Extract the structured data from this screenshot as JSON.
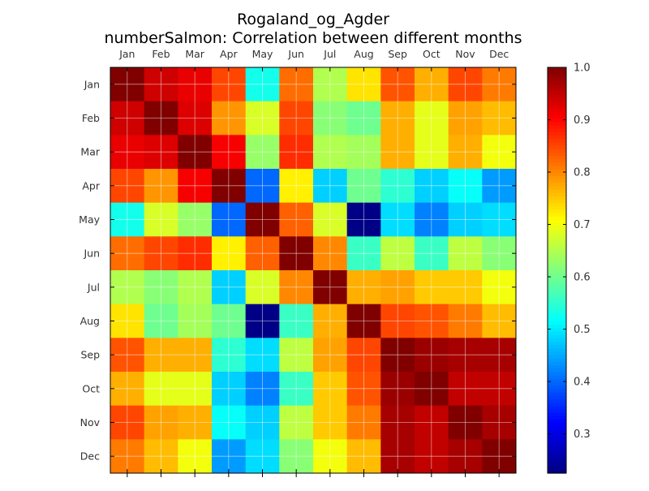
{
  "chart_data": {
    "type": "heatmap",
    "title": "Rogaland_og_Agder",
    "subtitle": "numberSalmon: Correlation between different months",
    "x_labels": [
      "Jan",
      "Feb",
      "Mar",
      "Apr",
      "May",
      "Jun",
      "Jul",
      "Aug",
      "Sep",
      "Oct",
      "Nov",
      "Dec"
    ],
    "y_labels": [
      "Jan",
      "Feb",
      "Mar",
      "Apr",
      "May",
      "Jun",
      "Jul",
      "Aug",
      "Sep",
      "Oct",
      "Nov",
      "Dec"
    ],
    "x_tick_position": "top",
    "grid": true,
    "colormap": "jet",
    "value_range": [
      0.225,
      1.0
    ],
    "colorbar_ticks": [
      "0.3",
      "0.4",
      "0.5",
      "0.6",
      "0.7",
      "0.8",
      "0.9",
      "1.0"
    ],
    "values": [
      [
        1.0,
        0.94,
        0.92,
        0.85,
        0.53,
        0.82,
        0.65,
        0.73,
        0.84,
        0.77,
        0.85,
        0.81
      ],
      [
        0.94,
        1.0,
        0.93,
        0.79,
        0.68,
        0.85,
        0.62,
        0.6,
        0.77,
        0.69,
        0.78,
        0.76
      ],
      [
        0.92,
        0.93,
        1.0,
        0.91,
        0.63,
        0.87,
        0.65,
        0.64,
        0.77,
        0.69,
        0.77,
        0.7
      ],
      [
        0.85,
        0.79,
        0.91,
        1.0,
        0.4,
        0.72,
        0.48,
        0.6,
        0.55,
        0.48,
        0.52,
        0.44
      ],
      [
        0.53,
        0.68,
        0.63,
        0.4,
        1.0,
        0.83,
        0.68,
        0.23,
        0.49,
        0.42,
        0.48,
        0.49
      ],
      [
        0.82,
        0.85,
        0.87,
        0.72,
        0.83,
        1.0,
        0.8,
        0.56,
        0.66,
        0.56,
        0.66,
        0.62
      ],
      [
        0.65,
        0.62,
        0.65,
        0.48,
        0.68,
        0.8,
        1.0,
        0.77,
        0.78,
        0.75,
        0.75,
        0.7
      ],
      [
        0.73,
        0.6,
        0.64,
        0.6,
        0.23,
        0.56,
        0.77,
        1.0,
        0.85,
        0.84,
        0.81,
        0.76
      ],
      [
        0.84,
        0.77,
        0.77,
        0.55,
        0.49,
        0.66,
        0.78,
        0.85,
        1.0,
        0.98,
        0.97,
        0.97
      ],
      [
        0.77,
        0.69,
        0.69,
        0.48,
        0.42,
        0.56,
        0.75,
        0.84,
        0.98,
        1.0,
        0.95,
        0.95
      ],
      [
        0.85,
        0.78,
        0.77,
        0.52,
        0.48,
        0.66,
        0.75,
        0.81,
        0.97,
        0.95,
        1.0,
        0.97
      ],
      [
        0.81,
        0.76,
        0.7,
        0.44,
        0.49,
        0.62,
        0.7,
        0.76,
        0.97,
        0.95,
        0.97,
        1.0
      ]
    ]
  }
}
